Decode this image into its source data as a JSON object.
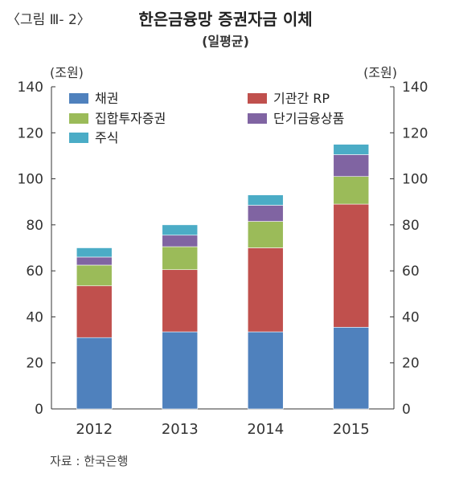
{
  "figure_label": "〈그림 Ⅲ- 2〉",
  "title": "한은금융망 증권자금 이체",
  "subtitle": "(일평균)",
  "source": "자료 : 한국은행",
  "chart_data": {
    "type": "bar",
    "stacked": true,
    "categories": [
      "2012",
      "2013",
      "2014",
      "2015"
    ],
    "series": [
      {
        "name": "채권",
        "color": "#4f81bd",
        "values": [
          31,
          33.5,
          33.5,
          35.5
        ]
      },
      {
        "name": "기관간 RP",
        "color": "#c0504d",
        "values": [
          22.5,
          27,
          36.5,
          53.5
        ]
      },
      {
        "name": "집합투자증권",
        "color": "#9bbb59",
        "values": [
          9,
          10,
          11.5,
          12
        ]
      },
      {
        "name": "단기금융상품",
        "color": "#8064a2",
        "values": [
          3.5,
          5,
          7,
          9.5
        ]
      },
      {
        "name": "주식",
        "color": "#4bacc6",
        "values": [
          4,
          4.5,
          4.5,
          4.5
        ]
      }
    ],
    "ylabel_left": "(조원)",
    "ylabel_right": "(조원)",
    "ylim": [
      0,
      140
    ],
    "yticks": [
      "0",
      "20",
      "40",
      "60",
      "80",
      "100",
      "120",
      "140"
    ],
    "grid": false,
    "legend_position": "top-left"
  }
}
